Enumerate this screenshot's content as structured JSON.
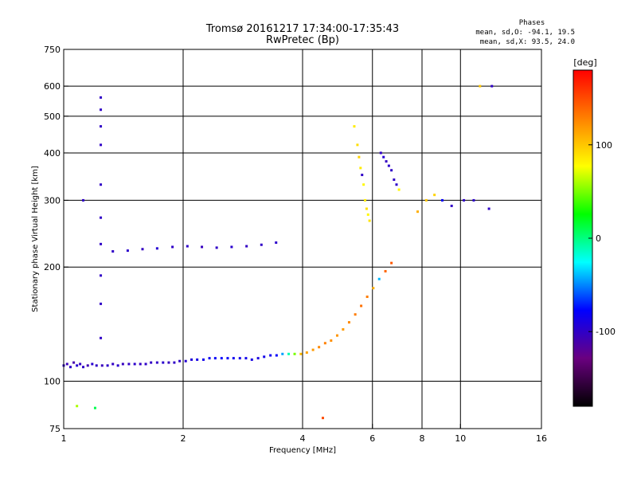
{
  "chart_data": {
    "type": "scatter",
    "title": "Tromsø 20161217 17:34:00-17:35:43",
    "subtitle": "RwPretec (Bp)",
    "stats": {
      "header": "Phases",
      "line_o": "mean, sd,O: -94.1, 19.5",
      "line_x": "mean, sd,X:  93.5, 24.0"
    },
    "xlabel": "Frequency [MHz]",
    "ylabel": "Stationary phase Virtual Height [km]",
    "xscale": "log",
    "yscale": "log",
    "xlim": [
      1,
      16
    ],
    "ylim": [
      75,
      750
    ],
    "xticks": [
      {
        "value": 1,
        "label": "1"
      },
      {
        "value": 2,
        "label": "2"
      },
      {
        "value": 4,
        "label": "4"
      },
      {
        "value": 6,
        "label": "6"
      },
      {
        "value": 8,
        "label": "8"
      },
      {
        "value": 10,
        "label": "10"
      },
      {
        "value": 16,
        "label": "16"
      }
    ],
    "yticks": [
      {
        "value": 75,
        "label": "75"
      },
      {
        "value": 100,
        "label": "100"
      },
      {
        "value": 200,
        "label": "200"
      },
      {
        "value": 300,
        "label": "300"
      },
      {
        "value": 400,
        "label": "400"
      },
      {
        "value": 500,
        "label": "500"
      },
      {
        "value": 600,
        "label": "600"
      },
      {
        "value": 750,
        "label": "750"
      }
    ],
    "x_gridlines": [
      2,
      4,
      6,
      8,
      10
    ],
    "y_gridlines": [
      100,
      200,
      300,
      400,
      500,
      600
    ],
    "colorbar": {
      "label": "[deg]",
      "range": [
        -180,
        180
      ],
      "ticks": [
        {
          "value": 100,
          "label": "100"
        },
        {
          "value": 0,
          "label": "0"
        },
        {
          "value": -100,
          "label": "-100"
        }
      ],
      "stops": [
        "#000000",
        "#6a0080",
        "#0000ff",
        "#00ffff",
        "#00ff00",
        "#ffff00",
        "#ff8000",
        "#ff0000"
      ]
    },
    "points": [
      [
        1.0,
        110,
        -100
      ],
      [
        1.02,
        111,
        -105
      ],
      [
        1.04,
        109,
        -98
      ],
      [
        1.06,
        112,
        -110
      ],
      [
        1.08,
        110,
        -95
      ],
      [
        1.1,
        111,
        -102
      ],
      [
        1.12,
        109,
        -100
      ],
      [
        1.15,
        110,
        -108
      ],
      [
        1.18,
        111,
        -96
      ],
      [
        1.21,
        110,
        -100
      ],
      [
        1.25,
        110,
        -104
      ],
      [
        1.29,
        110,
        -99
      ],
      [
        1.33,
        111,
        -101
      ],
      [
        1.37,
        110,
        -97
      ],
      [
        1.41,
        111,
        -103
      ],
      [
        1.46,
        111,
        -100
      ],
      [
        1.51,
        111,
        -98
      ],
      [
        1.56,
        111,
        -102
      ],
      [
        1.61,
        111,
        -99
      ],
      [
        1.66,
        112,
        -101
      ],
      [
        1.72,
        112,
        -100
      ],
      [
        1.78,
        112,
        -97
      ],
      [
        1.84,
        112,
        -103
      ],
      [
        1.9,
        112,
        -100
      ],
      [
        1.96,
        113,
        -99
      ],
      [
        2.03,
        113,
        -95
      ],
      [
        2.1,
        114,
        -92
      ],
      [
        2.17,
        114,
        -88
      ],
      [
        2.25,
        114,
        -85
      ],
      [
        2.33,
        115,
        -82
      ],
      [
        2.41,
        115,
        -80
      ],
      [
        2.5,
        115,
        -78
      ],
      [
        2.59,
        115,
        -80
      ],
      [
        2.68,
        115,
        -83
      ],
      [
        2.78,
        115,
        -86
      ],
      [
        2.88,
        115,
        -85
      ],
      [
        2.98,
        114,
        -88
      ],
      [
        3.09,
        115,
        -90
      ],
      [
        3.2,
        116,
        -86
      ],
      [
        3.32,
        117,
        -84
      ],
      [
        3.44,
        117,
        -78
      ],
      [
        3.56,
        118,
        -45
      ],
      [
        3.69,
        118,
        -10
      ],
      [
        3.82,
        118,
        50
      ],
      [
        3.96,
        118,
        105
      ],
      [
        4.1,
        119,
        115
      ],
      [
        4.25,
        121,
        118
      ],
      [
        4.4,
        123,
        125
      ],
      [
        4.56,
        126,
        128
      ],
      [
        4.72,
        128,
        122
      ],
      [
        4.89,
        132,
        120
      ],
      [
        5.06,
        137,
        118
      ],
      [
        5.24,
        143,
        125
      ],
      [
        5.43,
        150,
        130
      ],
      [
        5.62,
        158,
        135
      ],
      [
        5.82,
        167,
        130
      ],
      [
        6.03,
        176,
        110
      ],
      [
        6.24,
        186,
        -40
      ],
      [
        6.47,
        195,
        140
      ],
      [
        6.7,
        205,
        145
      ],
      [
        1.33,
        220,
        -100
      ],
      [
        1.45,
        221,
        -98
      ],
      [
        1.58,
        223,
        -102
      ],
      [
        1.72,
        224,
        -95
      ],
      [
        1.88,
        226,
        -100
      ],
      [
        2.05,
        227,
        -99
      ],
      [
        2.23,
        226,
        -103
      ],
      [
        2.43,
        225,
        -100
      ],
      [
        2.65,
        226,
        -97
      ],
      [
        2.89,
        227,
        -101
      ],
      [
        3.15,
        229,
        -100
      ],
      [
        3.43,
        232,
        -98
      ],
      [
        5.4,
        470,
        85
      ],
      [
        5.5,
        420,
        90
      ],
      [
        5.55,
        390,
        95
      ],
      [
        5.6,
        365,
        85
      ],
      [
        5.65,
        350,
        -100
      ],
      [
        5.7,
        330,
        80
      ],
      [
        5.75,
        300,
        85
      ],
      [
        5.8,
        285,
        90
      ],
      [
        5.85,
        275,
        80
      ],
      [
        5.9,
        265,
        88
      ],
      [
        6.3,
        400,
        -100
      ],
      [
        6.4,
        390,
        -95
      ],
      [
        6.5,
        380,
        -102
      ],
      [
        6.6,
        370,
        -98
      ],
      [
        6.7,
        360,
        -100
      ],
      [
        6.8,
        340,
        -100
      ],
      [
        6.9,
        330,
        -98
      ],
      [
        7.0,
        320,
        80
      ],
      [
        7.8,
        280,
        110
      ],
      [
        8.2,
        300,
        100
      ],
      [
        8.6,
        310,
        95
      ],
      [
        9.0,
        300,
        -80
      ],
      [
        9.5,
        290,
        -100
      ],
      [
        10.2,
        300,
        -100
      ],
      [
        10.8,
        300,
        -98
      ],
      [
        11.8,
        285,
        -100
      ],
      [
        1.24,
        560,
        -100
      ],
      [
        1.24,
        520,
        -100
      ],
      [
        1.24,
        470,
        -100
      ],
      [
        1.24,
        420,
        -100
      ],
      [
        1.24,
        330,
        -100
      ],
      [
        1.24,
        270,
        -100
      ],
      [
        1.24,
        230,
        -100
      ],
      [
        1.24,
        190,
        -100
      ],
      [
        1.24,
        160,
        -100
      ],
      [
        1.24,
        130,
        -100
      ],
      [
        1.12,
        300,
        -100
      ],
      [
        1.2,
        85,
        10
      ],
      [
        1.08,
        86,
        60
      ],
      [
        4.5,
        80,
        150
      ],
      [
        12.0,
        600,
        -100
      ],
      [
        11.2,
        600,
        100
      ]
    ]
  }
}
